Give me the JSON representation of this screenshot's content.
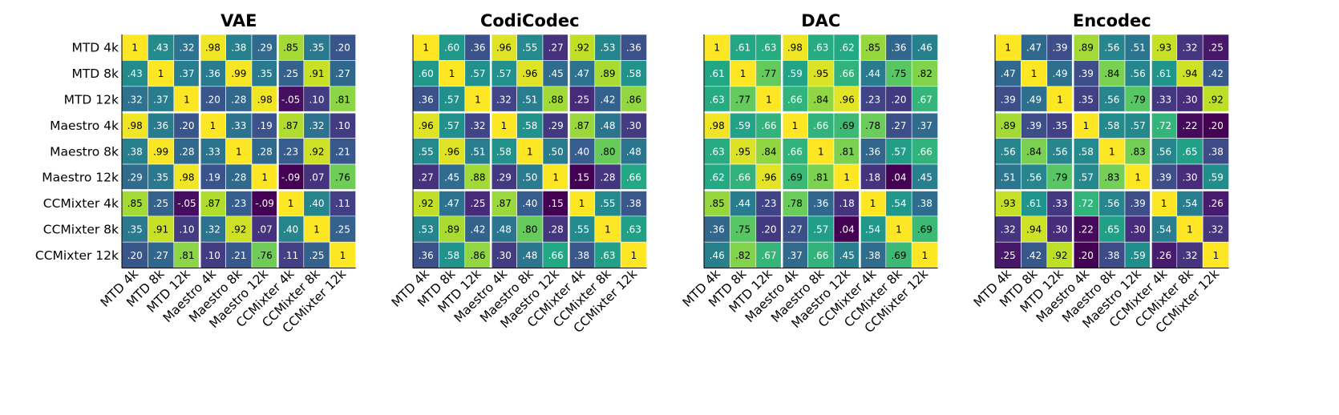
{
  "chart_data": [
    {
      "type": "heatmap",
      "title": "VAE",
      "x_tick_labels": [
        "MTD 4k",
        "MTD 8k",
        "MTD 12k",
        "Maestro 4k",
        "Maestro 8k",
        "Maestro 12k",
        "CCMixter 4k",
        "CCMixter 8k",
        "CCMixter 12k"
      ],
      "y_tick_labels": [
        "MTD 4k",
        "MTD 8k",
        "MTD 12k",
        "Maestro 4k",
        "Maestro 8k",
        "Maestro 12k",
        "CCMixter 4k",
        "CCMixter 8k",
        "CCMixter 12k"
      ],
      "values": [
        [
          1,
          0.43,
          0.32,
          0.98,
          0.38,
          0.29,
          0.85,
          0.35,
          0.2
        ],
        [
          0.43,
          1,
          0.37,
          0.36,
          0.99,
          0.35,
          0.25,
          0.91,
          0.27
        ],
        [
          0.32,
          0.37,
          1,
          0.2,
          0.28,
          0.98,
          -0.05,
          0.1,
          0.81
        ],
        [
          0.98,
          0.36,
          0.2,
          1,
          0.33,
          0.19,
          0.87,
          0.32,
          0.1
        ],
        [
          0.38,
          0.99,
          0.28,
          0.33,
          1,
          0.28,
          0.23,
          0.92,
          0.21
        ],
        [
          0.29,
          0.35,
          0.98,
          0.19,
          0.28,
          1,
          -0.09,
          0.07,
          0.76
        ],
        [
          0.85,
          0.25,
          -0.05,
          0.87,
          0.23,
          -0.09,
          1,
          0.4,
          0.11
        ],
        [
          0.35,
          0.91,
          0.1,
          0.32,
          0.92,
          0.07,
          0.4,
          1,
          0.25
        ],
        [
          0.2,
          0.27,
          0.81,
          0.1,
          0.21,
          0.76,
          0.11,
          0.25,
          1
        ]
      ],
      "value_range": [
        -0.09,
        1
      ]
    },
    {
      "type": "heatmap",
      "title": "CodiCodec",
      "x_tick_labels": [
        "MTD 4k",
        "MTD 8k",
        "MTD 12k",
        "Maestro 4k",
        "Maestro 8k",
        "Maestro 12k",
        "CCMixter 4k",
        "CCMixter 8k",
        "CCMixter 12k"
      ],
      "y_tick_labels": [],
      "values": [
        [
          1,
          0.6,
          0.36,
          0.96,
          0.55,
          0.27,
          0.92,
          0.53,
          0.36
        ],
        [
          0.6,
          1,
          0.57,
          0.57,
          0.96,
          0.45,
          0.47,
          0.89,
          0.58
        ],
        [
          0.36,
          0.57,
          1,
          0.32,
          0.51,
          0.88,
          0.25,
          0.42,
          0.86
        ],
        [
          0.96,
          0.57,
          0.32,
          1,
          0.58,
          0.29,
          0.87,
          0.48,
          0.3
        ],
        [
          0.55,
          0.96,
          0.51,
          0.58,
          1,
          0.5,
          0.4,
          0.8,
          0.48
        ],
        [
          0.27,
          0.45,
          0.88,
          0.29,
          0.5,
          1,
          0.15,
          0.28,
          0.66
        ],
        [
          0.92,
          0.47,
          0.25,
          0.87,
          0.4,
          0.15,
          1,
          0.55,
          0.38
        ],
        [
          0.53,
          0.89,
          0.42,
          0.48,
          0.8,
          0.28,
          0.55,
          1,
          0.63
        ],
        [
          0.36,
          0.58,
          0.86,
          0.3,
          0.48,
          0.66,
          0.38,
          0.63,
          1
        ]
      ],
      "value_range": [
        0.15,
        1
      ]
    },
    {
      "type": "heatmap",
      "title": "DAC",
      "x_tick_labels": [
        "MTD 4k",
        "MTD 8k",
        "MTD 12k",
        "Maestro 4k",
        "Maestro 8k",
        "Maestro 12k",
        "CCMixter 4k",
        "CCMixter 8k",
        "CCMixter 12k"
      ],
      "y_tick_labels": [],
      "values": [
        [
          1,
          0.61,
          0.63,
          0.98,
          0.63,
          0.62,
          0.85,
          0.36,
          0.46
        ],
        [
          0.61,
          1,
          0.77,
          0.59,
          0.95,
          0.66,
          0.44,
          0.75,
          0.82
        ],
        [
          0.63,
          0.77,
          1,
          0.66,
          0.84,
          0.96,
          0.23,
          0.2,
          0.67
        ],
        [
          0.98,
          0.59,
          0.66,
          1,
          0.66,
          0.69,
          0.78,
          0.27,
          0.37
        ],
        [
          0.63,
          0.95,
          0.84,
          0.66,
          1,
          0.81,
          0.36,
          0.57,
          0.66
        ],
        [
          0.62,
          0.66,
          0.96,
          0.69,
          0.81,
          1,
          0.18,
          0.04,
          0.45
        ],
        [
          0.85,
          0.44,
          0.23,
          0.78,
          0.36,
          0.18,
          1,
          0.54,
          0.38
        ],
        [
          0.36,
          0.75,
          0.2,
          0.27,
          0.57,
          0.04,
          0.54,
          1,
          0.69
        ],
        [
          0.46,
          0.82,
          0.67,
          0.37,
          0.66,
          0.45,
          0.38,
          0.69,
          1
        ]
      ],
      "value_range": [
        0.04,
        1
      ]
    },
    {
      "type": "heatmap",
      "title": "Encodec",
      "x_tick_labels": [
        "MTD 4k",
        "MTD 8k",
        "MTD 12k",
        "Maestro 4k",
        "Maestro 8k",
        "Maestro 12k",
        "CCMixter 4k",
        "CCMixter 8k",
        "CCMixter 12k"
      ],
      "y_tick_labels": [],
      "values": [
        [
          1,
          0.47,
          0.39,
          0.89,
          0.56,
          0.51,
          0.93,
          0.32,
          0.25
        ],
        [
          0.47,
          1,
          0.49,
          0.39,
          0.84,
          0.56,
          0.61,
          0.94,
          0.42
        ],
        [
          0.39,
          0.49,
          1,
          0.35,
          0.56,
          0.79,
          0.33,
          0.3,
          0.92
        ],
        [
          0.89,
          0.39,
          0.35,
          1,
          0.58,
          0.57,
          0.72,
          0.22,
          0.2
        ],
        [
          0.56,
          0.84,
          0.56,
          0.58,
          1,
          0.83,
          0.56,
          0.65,
          0.38
        ],
        [
          0.51,
          0.56,
          0.79,
          0.57,
          0.83,
          1,
          0.39,
          0.3,
          0.59
        ],
        [
          0.93,
          0.61,
          0.33,
          0.72,
          0.56,
          0.39,
          1,
          0.54,
          0.26
        ],
        [
          0.32,
          0.94,
          0.3,
          0.22,
          0.65,
          0.3,
          0.54,
          1,
          0.32
        ],
        [
          0.25,
          0.42,
          0.92,
          0.2,
          0.38,
          0.59,
          0.26,
          0.32,
          1
        ]
      ],
      "value_range": [
        0.2,
        1
      ]
    }
  ],
  "colormap": "viridis",
  "colors": {
    "viridis_stops": [
      "#440154",
      "#482475",
      "#414487",
      "#355f8d",
      "#2a788e",
      "#21918c",
      "#22a884",
      "#44bf70",
      "#7ad151",
      "#bddf26",
      "#fde725"
    ],
    "cell_border": "#ffffff",
    "block_separator": "#ffffff",
    "axis_line": "#000000"
  }
}
